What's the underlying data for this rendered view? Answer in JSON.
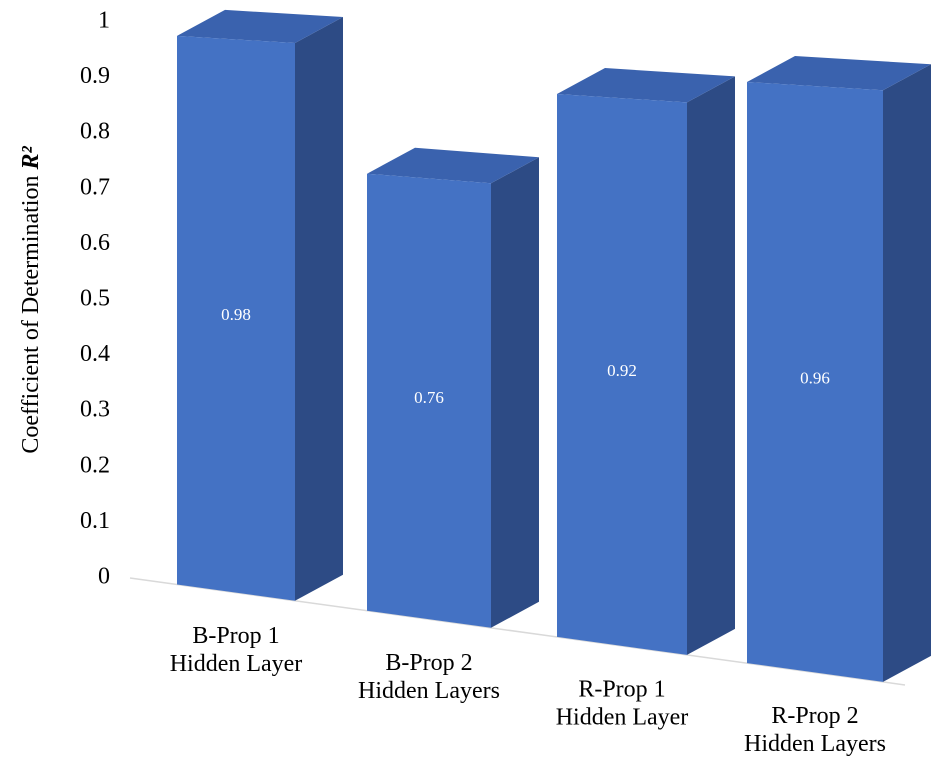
{
  "chart_data": {
    "type": "bar3d",
    "y_label": "Coefficient of Determination",
    "y_label_symbol": "R²",
    "categories": [
      [
        "B-Prop 1",
        "Hidden Layer"
      ],
      [
        "B-Prop 2",
        "Hidden Layers"
      ],
      [
        "R-Prop 1",
        "Hidden Layer"
      ],
      [
        "R-Prop 2",
        "Hidden Layers"
      ]
    ],
    "values": [
      0.98,
      0.76,
      0.92,
      0.96
    ],
    "color": "#4472c4",
    "ylim": [
      0,
      1
    ],
    "yticks": [
      0,
      0.1,
      0.2,
      0.3,
      0.4,
      0.5,
      0.6,
      0.7,
      0.8,
      0.9,
      1
    ]
  }
}
